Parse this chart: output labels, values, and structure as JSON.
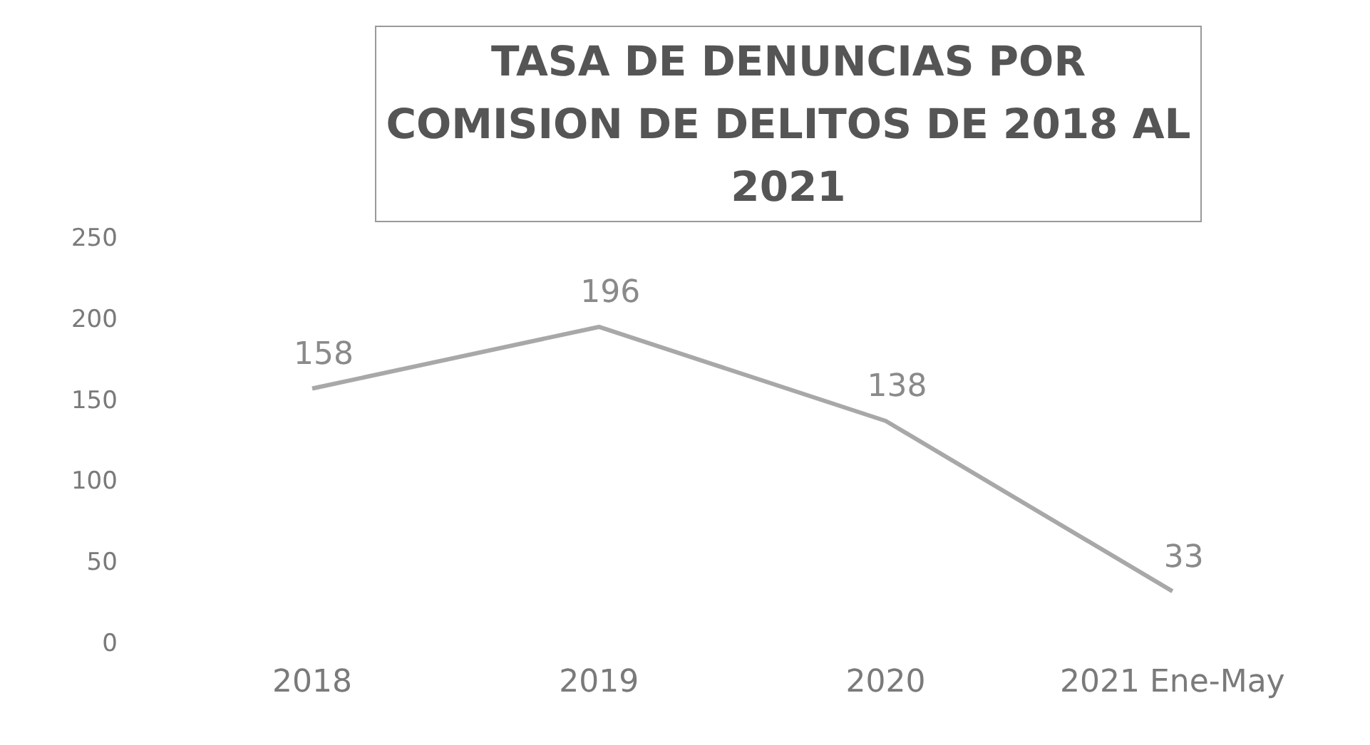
{
  "chart_data": {
    "type": "line",
    "title": "TASA DE DENUNCIAS POR COMISION DE DELITOS DE 2018 AL 2021",
    "categories": [
      "2018",
      "2019",
      "2020",
      "2021 Ene-May"
    ],
    "series": [
      {
        "color": "#a8a8a8",
        "values": [
          158,
          196,
          138,
          33
        ]
      }
    ],
    "ylim": [
      0,
      250
    ],
    "yticks": [
      0,
      50,
      100,
      150,
      200,
      250
    ],
    "grid": false,
    "legend": false,
    "marker": "none",
    "line_style": "solid",
    "data_labels": true
  }
}
